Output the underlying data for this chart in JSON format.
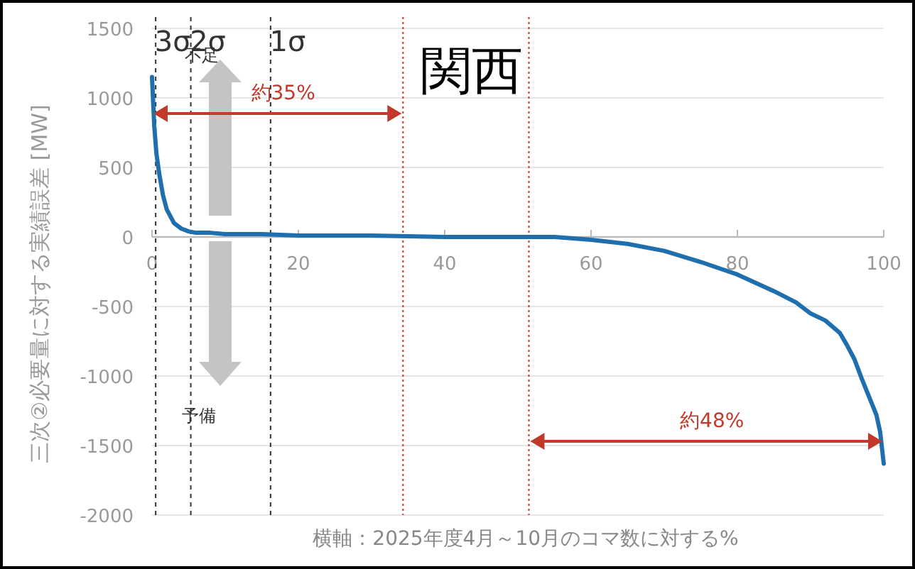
{
  "chart_data": {
    "type": "line",
    "title": "関西",
    "xlabel": "横軸：2025年度4月～10月のコマ数に対する%",
    "ylabel": "三次②必要量に対する実績誤差 [MW]",
    "series": [
      {
        "color": "#1f6fae",
        "x": [
          0,
          0.3,
          0.6,
          1,
          1.5,
          2,
          3,
          4,
          5,
          6,
          8,
          10,
          15,
          20,
          30,
          40,
          50,
          55,
          60,
          65,
          70,
          75,
          80,
          85,
          88,
          90,
          92,
          94,
          95,
          96,
          97,
          98,
          99,
          99.5,
          100
        ],
        "values": [
          1150,
          800,
          600,
          450,
          300,
          200,
          100,
          60,
          40,
          30,
          30,
          20,
          20,
          10,
          10,
          0,
          0,
          0,
          -20,
          -50,
          -100,
          -180,
          -270,
          -390,
          -470,
          -550,
          -600,
          -690,
          -780,
          -880,
          -1020,
          -1150,
          -1280,
          -1400,
          -1630
        ]
      }
    ],
    "xlim": [
      0,
      100
    ],
    "ylim": [
      -2000,
      1500
    ],
    "xticks": [
      0,
      20,
      40,
      60,
      80,
      100
    ],
    "yticks": [
      -2000,
      -1500,
      -1000,
      -500,
      0,
      500,
      1000,
      1500
    ],
    "grid": "y",
    "ref_lines": [
      {
        "axis": "x",
        "value": 0.5,
        "label": "3σ",
        "color": "#333333",
        "line_style": "dashed"
      },
      {
        "axis": "x",
        "value": 5.3,
        "label": "2σ",
        "color": "#333333",
        "line_style": "dashed"
      },
      {
        "axis": "x",
        "value": 16.2,
        "label": "1σ",
        "color": "#333333",
        "line_style": "dashed"
      },
      {
        "axis": "x",
        "value": 34.3,
        "color": "#c0392b",
        "line_style": "dotted"
      },
      {
        "axis": "x",
        "value": 51.5,
        "color": "#c0392b",
        "line_style": "dotted"
      }
    ],
    "annotations": [
      "不足",
      "予備",
      "約35%",
      "約48%"
    ]
  }
}
